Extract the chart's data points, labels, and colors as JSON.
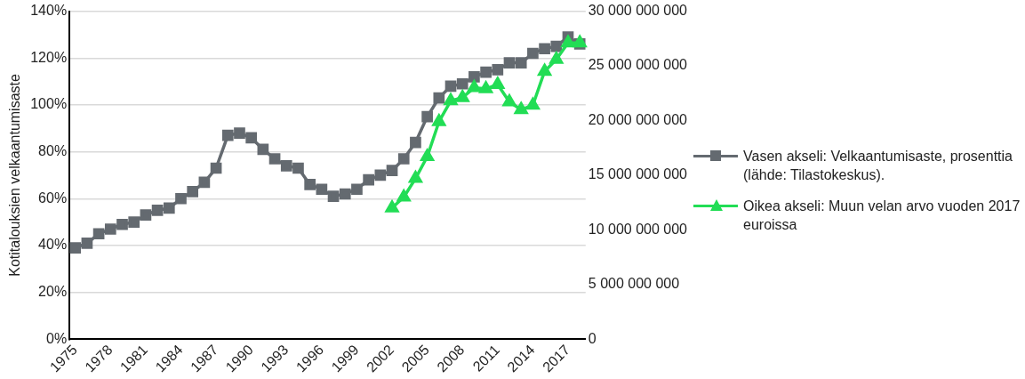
{
  "chart_data": {
    "type": "line",
    "ylabel": "Kotitalouksien velkaantumisaste",
    "categories": [
      "1975",
      null,
      null,
      "1978",
      null,
      null,
      "1981",
      null,
      null,
      "1984",
      null,
      null,
      "1987",
      null,
      null,
      "1990",
      null,
      null,
      "1993",
      null,
      null,
      "1996",
      null,
      null,
      "1999",
      null,
      null,
      "2002",
      null,
      null,
      "2005",
      null,
      null,
      "2008",
      null,
      null,
      "2011",
      null,
      null,
      "2014",
      null,
      null,
      "2017",
      null
    ],
    "series": [
      {
        "name": "Vasen akseli: Velkaantumisaste, prosenttia (lähde: Tilastokeskus).",
        "color": "#646a70",
        "marker": "square",
        "axis": "y",
        "values": [
          39,
          41,
          45,
          47,
          49,
          50,
          53,
          55,
          56,
          60,
          63,
          67,
          73,
          87,
          88,
          86,
          81,
          77,
          74,
          73,
          66,
          64,
          61,
          62,
          64,
          68,
          70,
          72,
          77,
          84,
          95,
          103,
          108,
          109,
          112,
          114,
          115,
          118,
          118,
          122,
          124,
          125,
          129,
          126
        ]
      },
      {
        "name": "Oikea akseli: Muun velan arvo vuoden 2017 euroissa",
        "color": "#22dd55",
        "marker": "triangle",
        "axis": "y2",
        "values": [
          null,
          null,
          null,
          null,
          null,
          null,
          null,
          null,
          null,
          null,
          null,
          null,
          null,
          null,
          null,
          null,
          null,
          null,
          null,
          null,
          null,
          null,
          null,
          null,
          null,
          null,
          null,
          12000000000,
          13000000000,
          14700000000,
          16700000000,
          19900000000,
          21800000000,
          22100000000,
          23000000000,
          22900000000,
          23300000000,
          21700000000,
          21000000000,
          21400000000,
          24500000000,
          25600000000,
          27100000000,
          27100000000
        ]
      }
    ],
    "ylim": [
      0,
      140
    ],
    "yticks": [
      {
        "value": 0,
        "label": "0%"
      },
      {
        "value": 20,
        "label": "20%"
      },
      {
        "value": 40,
        "label": "40%"
      },
      {
        "value": 60,
        "label": "60%"
      },
      {
        "value": 80,
        "label": "80%"
      },
      {
        "value": 100,
        "label": "100%"
      },
      {
        "value": 120,
        "label": "120%"
      },
      {
        "value": 140,
        "label": "140%"
      }
    ],
    "y2lim": [
      0,
      30000000000
    ],
    "y2ticks": [
      0,
      {
        "value": 5000000000,
        "label": "5 000 000 000"
      },
      {
        "value": 10000000000,
        "label": "10 000 000 000"
      },
      {
        "value": 15000000000,
        "label": "15 000 000 000"
      },
      {
        "value": 20000000000,
        "label": "20 000 000 000"
      },
      {
        "value": 25000000000,
        "label": "25 000 000 000"
      },
      {
        "value": 30000000000,
        "label": "30 000 000 000"
      }
    ],
    "grid": "y",
    "legend": "right",
    "line_style": "solid"
  }
}
